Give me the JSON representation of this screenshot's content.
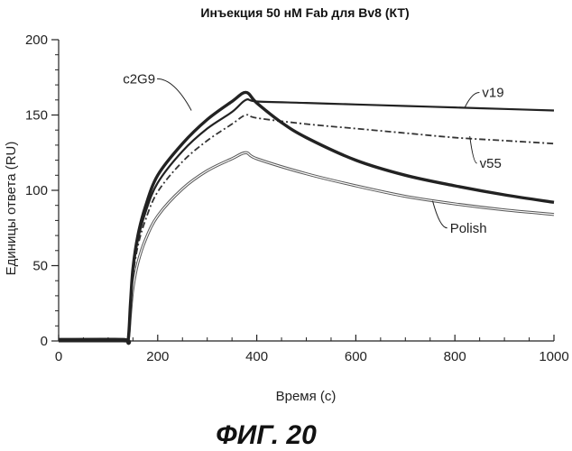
{
  "chart_data": {
    "type": "line",
    "title": "Инъекция 50 нМ Fab для Bv8 (КТ)",
    "xlabel": "Время (с)",
    "ylabel": "Единицы ответа (RU)",
    "xlim": [
      0,
      1000
    ],
    "ylim": [
      0,
      200
    ],
    "xticks": [
      0,
      200,
      400,
      600,
      800,
      1000
    ],
    "yticks": [
      0,
      50,
      100,
      150,
      200
    ],
    "grid": false,
    "series": [
      {
        "name": "c2G9",
        "style": "thick",
        "color": "#222222",
        "x": [
          0,
          130,
          140,
          145,
          150,
          160,
          175,
          200,
          250,
          300,
          350,
          378,
          400,
          450,
          500,
          600,
          700,
          800,
          900,
          1000
        ],
        "y": [
          1,
          1,
          0,
          25,
          48,
          70,
          89,
          110,
          131,
          147,
          159,
          165,
          158,
          145,
          135,
          120,
          110,
          103,
          97,
          92
        ]
      },
      {
        "name": "v19",
        "style": "solid",
        "color": "#222222",
        "x": [
          0,
          130,
          140,
          145,
          150,
          160,
          175,
          200,
          250,
          300,
          350,
          378,
          400,
          500,
          600,
          700,
          800,
          900,
          1000
        ],
        "y": [
          0,
          0,
          0,
          24,
          46,
          67,
          85,
          105,
          126,
          141,
          152,
          160,
          159,
          158,
          157,
          156,
          155,
          154,
          153
        ]
      },
      {
        "name": "v55",
        "style": "dashed",
        "color": "#333333",
        "x": [
          0,
          130,
          140,
          145,
          150,
          160,
          175,
          200,
          250,
          300,
          350,
          378,
          400,
          500,
          600,
          700,
          800,
          900,
          1000
        ],
        "y": [
          0,
          0,
          0,
          22,
          43,
          63,
          80,
          99,
          119,
          133,
          144,
          150,
          148,
          144,
          141,
          138,
          135,
          133,
          131
        ]
      },
      {
        "name": "Polish",
        "style": "double",
        "color": "#555555",
        "x": [
          0,
          130,
          140,
          145,
          150,
          160,
          175,
          200,
          250,
          300,
          350,
          378,
          400,
          500,
          600,
          700,
          800,
          900,
          1000
        ],
        "y": [
          0,
          0,
          0,
          18,
          35,
          52,
          67,
          83,
          101,
          113,
          121,
          125,
          121,
          111,
          103,
          96,
          91,
          87,
          84
        ]
      }
    ],
    "annotations": [
      {
        "series": "c2G9",
        "text": "c2G9",
        "label_x": 195,
        "label_y": 174,
        "point_x": 268,
        "point_y": 153
      },
      {
        "series": "v19",
        "text": "v19",
        "label_x": 855,
        "label_y": 165,
        "point_x": 820,
        "point_y": 155
      },
      {
        "series": "v55",
        "text": "v55",
        "label_x": 850,
        "label_y": 118,
        "point_x": 830,
        "point_y": 136
      },
      {
        "series": "Polish",
        "text": "Polish",
        "label_x": 790,
        "label_y": 75,
        "point_x": 755,
        "point_y": 93
      }
    ]
  },
  "figure_caption": "ФИГ. 20"
}
